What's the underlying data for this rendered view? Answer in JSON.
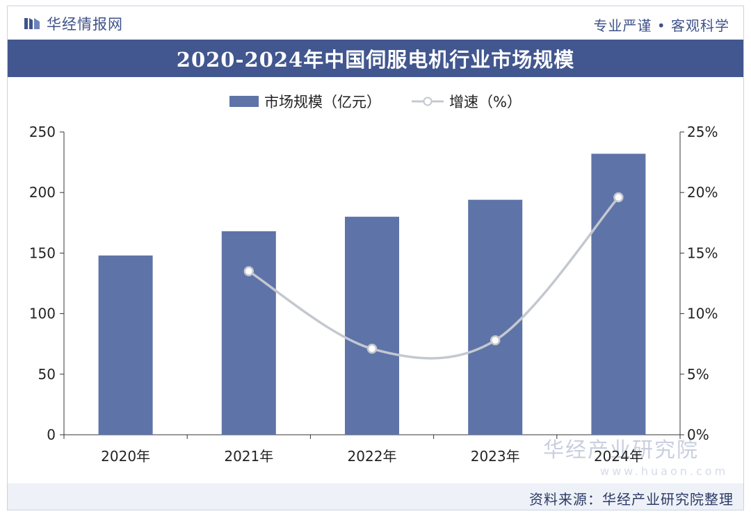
{
  "header": {
    "brand": "华经情报网",
    "slogan": "专业严谨 • 客观科学"
  },
  "title": "2020-2024年中国伺服电机行业市场规模",
  "legend": {
    "bar_label": "市场规模（亿元）",
    "line_label": "增速（%）"
  },
  "footer": {
    "source": "资料来源：华经产业研究院整理"
  },
  "watermark": {
    "name": "华经产业研究院",
    "url": "www.huaon.com"
  },
  "colors": {
    "bar": "#5e74a8",
    "line": "#c4c8cf",
    "title_bg": "#42578f",
    "brand": "#3f5289"
  },
  "chart_data": {
    "type": "bar",
    "title": "2020-2024年中国伺服电机行业市场规模",
    "categories": [
      "2020年",
      "2021年",
      "2022年",
      "2023年",
      "2024年"
    ],
    "series": [
      {
        "name": "市场规模（亿元）",
        "type": "bar",
        "axis": "left",
        "values": [
          148,
          168,
          180,
          194,
          232
        ]
      },
      {
        "name": "增速（%）",
        "type": "line",
        "axis": "right",
        "values": [
          null,
          13.5,
          7.1,
          7.8,
          19.6
        ]
      }
    ],
    "y_left": {
      "min": 0,
      "max": 250,
      "ticks": [
        "0",
        "50",
        "100",
        "150",
        "200",
        "250"
      ]
    },
    "y_right": {
      "min": 0,
      "max": 25,
      "ticks": [
        "0%",
        "5%",
        "10%",
        "15%",
        "20%",
        "25%"
      ]
    },
    "grid": false,
    "legend_position": "top-center"
  }
}
